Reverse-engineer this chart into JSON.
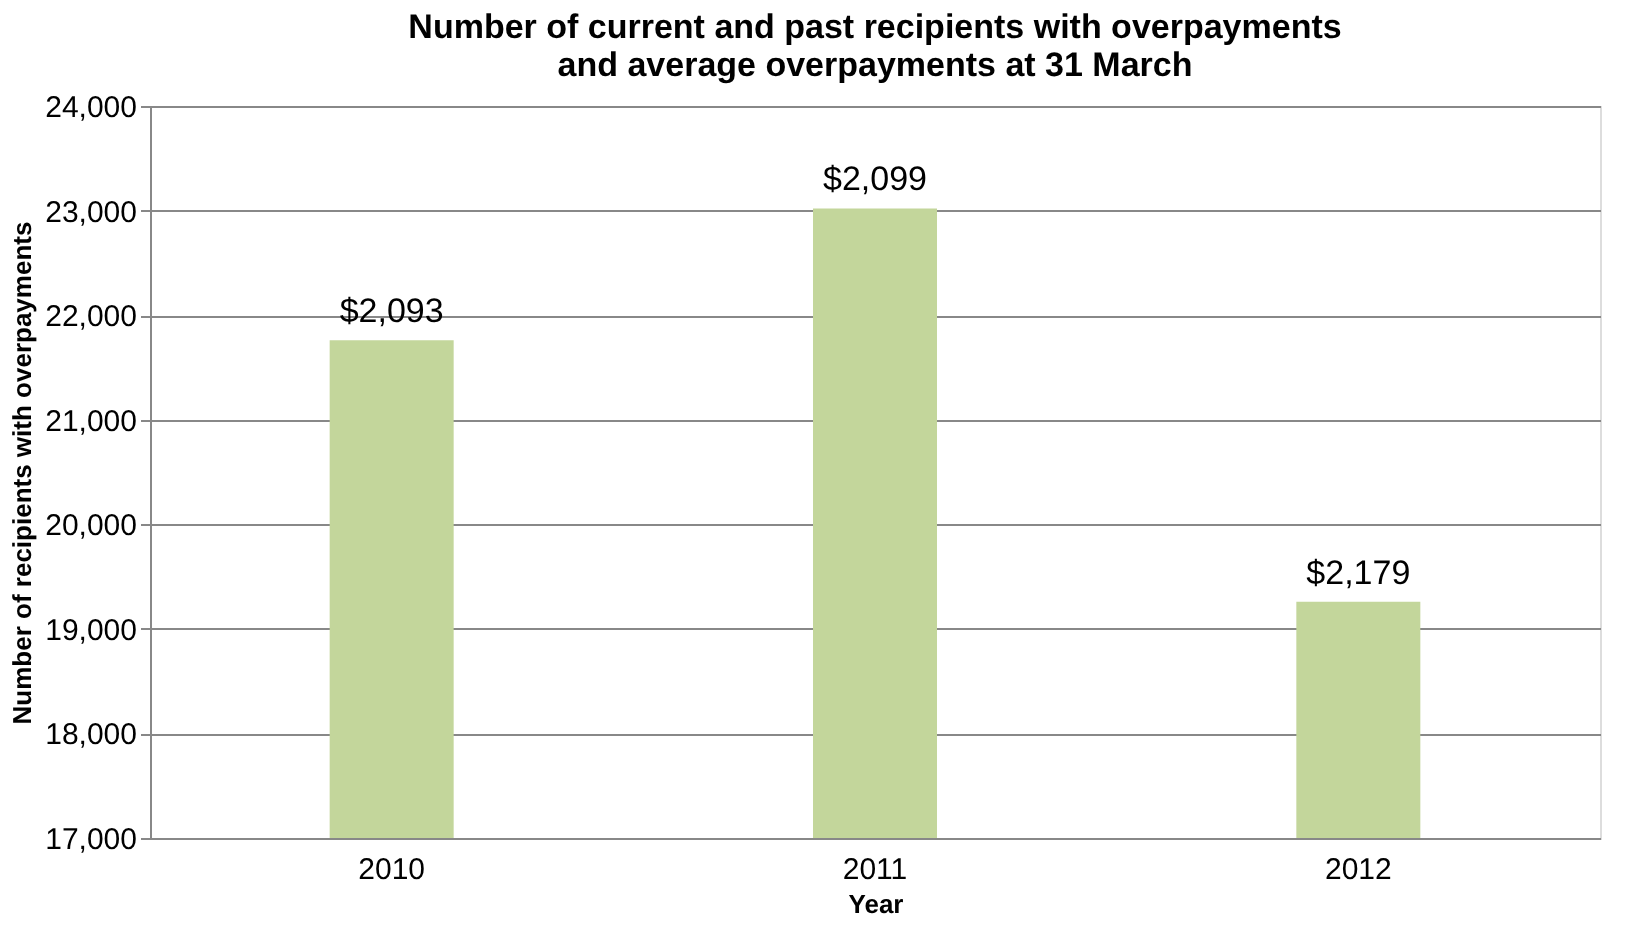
{
  "chart_data": {
    "type": "bar",
    "title": [
      "Number of current and past recipients with overpayments",
      "and average overpayments at 31 March"
    ],
    "xlabel": "Year",
    "ylabel": "Number of recipients with overpayments",
    "categories": [
      "2010",
      "2011",
      "2012"
    ],
    "series": [
      {
        "color": "#c3d69b",
        "values": [
          21760,
          23020,
          19260
        ]
      }
    ],
    "annotations": [
      {
        "text": "$2,093",
        "x": "2010",
        "y": 21760
      },
      {
        "text": "$2,099",
        "x": "2011",
        "y": 23020
      },
      {
        "text": "$2,179",
        "x": "2012",
        "y": 19260
      }
    ],
    "ylim": [
      17000,
      24000
    ],
    "yticks": [
      {
        "value": 17000,
        "label": "17,000"
      },
      {
        "value": 18000,
        "label": "18,000"
      },
      {
        "value": 19000,
        "label": "19,000"
      },
      {
        "value": 20000,
        "label": "20,000"
      },
      {
        "value": 21000,
        "label": "21,000"
      },
      {
        "value": 22000,
        "label": "22,000"
      },
      {
        "value": 23000,
        "label": "23,000"
      },
      {
        "value": 24000,
        "label": "24,000"
      }
    ],
    "grid": "y"
  }
}
